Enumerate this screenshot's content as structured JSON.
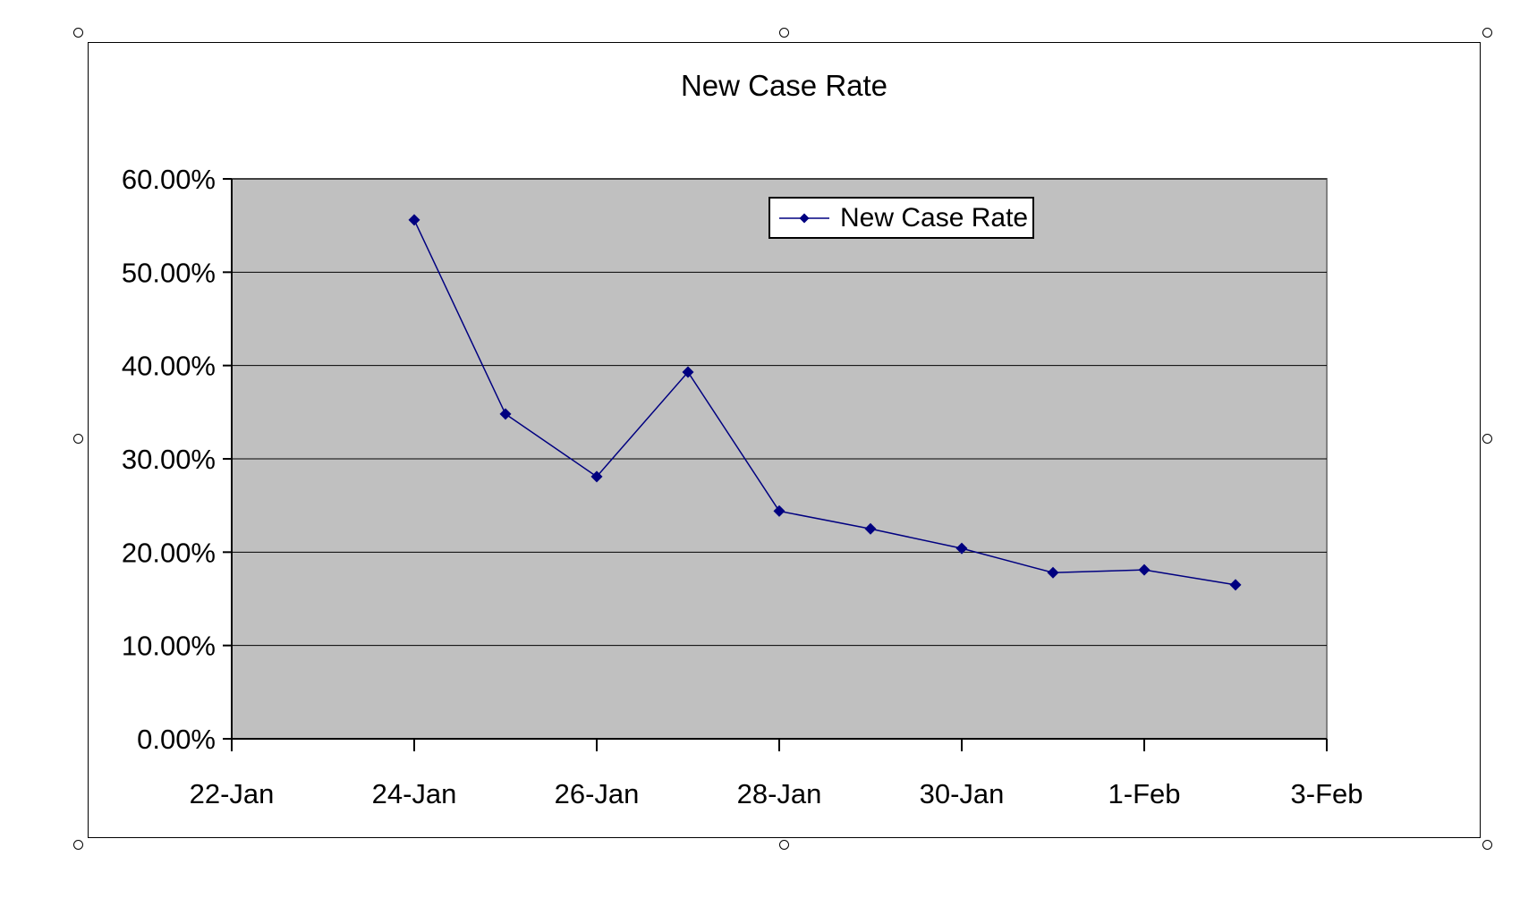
{
  "page": {
    "background": "#FFFFFF"
  },
  "colors": {
    "series": "#000080",
    "plot_area_fill": "#C0C0C0",
    "plot_area_border": "#808080",
    "gridline": "#000000",
    "axis": "#000000",
    "chart_border": "#000000",
    "legend_border": "#000000",
    "text": "#000000",
    "background": "#FFFFFF"
  },
  "selection_handles": {
    "shape": "circle",
    "count": 8,
    "fill": "#FFFFFF",
    "border": "#000000"
  },
  "chart_data": {
    "type": "line",
    "title": "New Case Rate",
    "xlabel": "",
    "ylabel": "",
    "y_unit": "%",
    "ylim": [
      0,
      60
    ],
    "grid": true,
    "plot_background": "#C0C0C0",
    "legend": {
      "visible": true,
      "position": "top-center-inside",
      "label": "New Case Rate"
    },
    "y_ticks": [
      {
        "value": 0,
        "label": "0.00%"
      },
      {
        "value": 10,
        "label": "10.00%"
      },
      {
        "value": 20,
        "label": "20.00%"
      },
      {
        "value": 30,
        "label": "30.00%"
      },
      {
        "value": 40,
        "label": "40.00%"
      },
      {
        "value": 50,
        "label": "50.00%"
      },
      {
        "value": 60,
        "label": "60.00%"
      }
    ],
    "xlim_days": [
      0,
      12
    ],
    "x_ticks": [
      {
        "day": 0,
        "label": "22-Jan"
      },
      {
        "day": 2,
        "label": "24-Jan"
      },
      {
        "day": 4,
        "label": "26-Jan"
      },
      {
        "day": 6,
        "label": "28-Jan"
      },
      {
        "day": 8,
        "label": "30-Jan"
      },
      {
        "day": 10,
        "label": "1-Feb"
      },
      {
        "day": 12,
        "label": "3-Feb"
      }
    ],
    "series": [
      {
        "name": "New Case Rate",
        "color": "#000080",
        "marker": "diamond",
        "points": [
          {
            "date": "24-Jan",
            "day": 2,
            "value": 55.6
          },
          {
            "date": "25-Jan",
            "day": 3,
            "value": 34.8
          },
          {
            "date": "26-Jan",
            "day": 4,
            "value": 28.1
          },
          {
            "date": "27-Jan",
            "day": 5,
            "value": 39.3
          },
          {
            "date": "28-Jan",
            "day": 6,
            "value": 24.4
          },
          {
            "date": "29-Jan",
            "day": 7,
            "value": 22.5
          },
          {
            "date": "30-Jan",
            "day": 8,
            "value": 20.4
          },
          {
            "date": "31-Jan",
            "day": 9,
            "value": 17.8
          },
          {
            "date": "1-Feb",
            "day": 10,
            "value": 18.1
          },
          {
            "date": "2-Feb",
            "day": 11,
            "value": 16.5
          }
        ]
      }
    ]
  }
}
